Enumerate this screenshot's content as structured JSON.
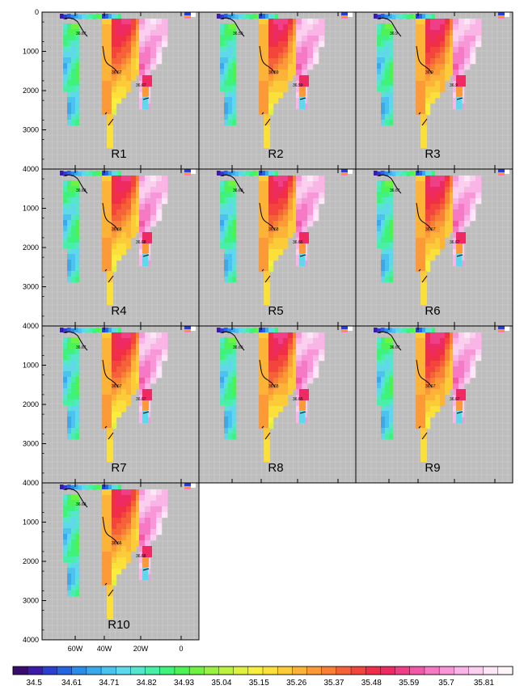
{
  "chart_data": {
    "type": "heatmap",
    "panels": [
      {
        "label": "R1",
        "contour_labels": [
          "36.67",
          "36.67",
          "36.67"
        ]
      },
      {
        "label": "R2",
        "contour_labels": [
          "36.59",
          "36.59",
          "36.59"
        ]
      },
      {
        "label": "R3",
        "contour_labels": [
          "36.9",
          "36.9",
          "36.9"
        ]
      },
      {
        "label": "R4",
        "contour_labels": [
          "36.68",
          "36.68",
          "36.68"
        ]
      },
      {
        "label": "R5",
        "contour_labels": [
          "36.68",
          "36.68",
          "36.65"
        ]
      },
      {
        "label": "R6",
        "contour_labels": [
          "36.67",
          "36.67",
          "36.67"
        ]
      },
      {
        "label": "R7",
        "contour_labels": [
          "36.67",
          "36.67",
          "36.67"
        ]
      },
      {
        "label": "R8",
        "contour_labels": [
          "36.69",
          "36.65",
          "36.65"
        ]
      },
      {
        "label": "R9",
        "contour_labels": [
          "36.67",
          "36.67",
          "36.67"
        ]
      },
      {
        "label": "R10",
        "contour_labels": [
          "36.68",
          "36.66",
          "36.68"
        ]
      }
    ],
    "y_axis": {
      "ticks": [
        "0",
        "1000",
        "2000",
        "3000",
        "4000"
      ],
      "range": [
        0,
        4000
      ],
      "reversed": true
    },
    "x_axis": {
      "ticks": [
        "60W",
        "40W",
        "20W",
        "0"
      ]
    },
    "colorbar": {
      "labels": [
        "34.5",
        "34.61",
        "34.71",
        "34.82",
        "34.93",
        "35.04",
        "35.15",
        "35.26",
        "35.37",
        "35.48",
        "35.59",
        "35.7",
        "35.81"
      ],
      "colors": [
        "#3a0a6e",
        "#3d1aa8",
        "#2b3fd1",
        "#2366e0",
        "#2a8ce8",
        "#3aa9ec",
        "#4cc2ee",
        "#5fd8ea",
        "#56e6cc",
        "#48efa6",
        "#3ef27c",
        "#4ef255",
        "#6ff242",
        "#98f23f",
        "#bdf03f",
        "#dff03e",
        "#f7ee3d",
        "#fbe03b",
        "#fccb39",
        "#fcb337",
        "#fb9a36",
        "#f97f36",
        "#f66238",
        "#f3453c",
        "#f02e48",
        "#ee2a63",
        "#ef3f86",
        "#f25aa8",
        "#f579c4",
        "#f797d8",
        "#f9b5e6",
        "#fbd0ef",
        "#fde6f6",
        "#fff6fb"
      ]
    }
  }
}
